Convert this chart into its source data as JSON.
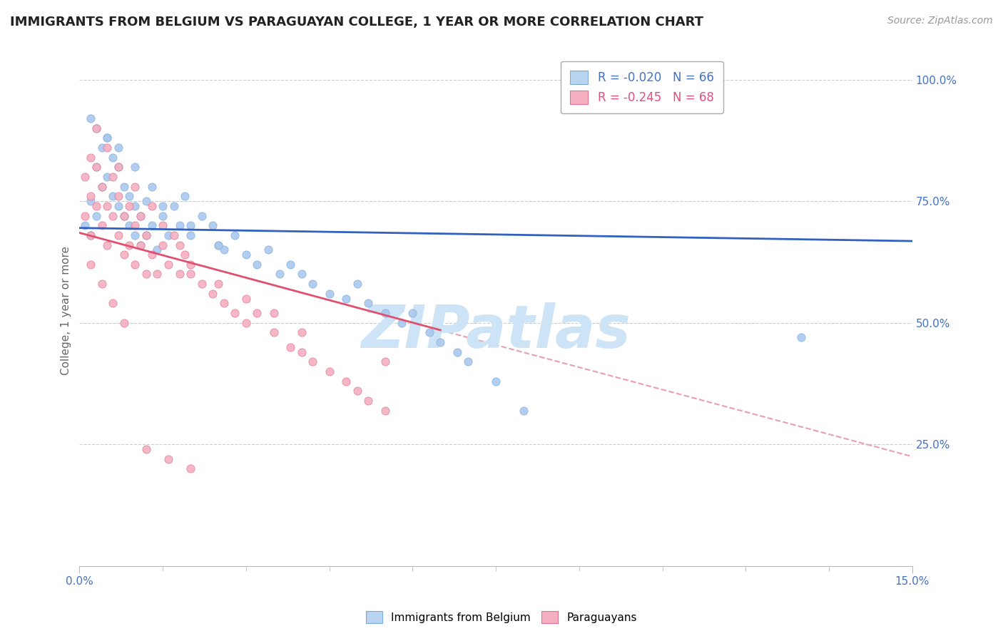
{
  "title": "IMMIGRANTS FROM BELGIUM VS PARAGUAYAN COLLEGE, 1 YEAR OR MORE CORRELATION CHART",
  "source_text": "Source: ZipAtlas.com",
  "ylabel": "College, 1 year or more",
  "xlim": [
    0.0,
    0.15
  ],
  "ylim": [
    0.0,
    1.05
  ],
  "ytick_positions": [
    0.25,
    0.5,
    0.75,
    1.0
  ],
  "ytick_labels": [
    "25.0%",
    "50.0%",
    "75.0%",
    "100.0%"
  ],
  "legend_entries": [
    {
      "label": "R = -0.020   N = 66",
      "color": "#4472c4"
    },
    {
      "label": "R = -0.245   N = 68",
      "color": "#e05080"
    }
  ],
  "blue_scatter": {
    "color": "#aac8ee",
    "edge_color": "#7aaad8",
    "x": [
      0.001,
      0.002,
      0.002,
      0.003,
      0.003,
      0.004,
      0.004,
      0.005,
      0.005,
      0.006,
      0.006,
      0.007,
      0.007,
      0.008,
      0.008,
      0.009,
      0.009,
      0.01,
      0.01,
      0.011,
      0.011,
      0.012,
      0.012,
      0.013,
      0.014,
      0.015,
      0.016,
      0.017,
      0.018,
      0.019,
      0.02,
      0.022,
      0.024,
      0.025,
      0.026,
      0.028,
      0.03,
      0.032,
      0.034,
      0.036,
      0.038,
      0.04,
      0.042,
      0.045,
      0.048,
      0.05,
      0.052,
      0.055,
      0.058,
      0.06,
      0.063,
      0.065,
      0.068,
      0.07,
      0.075,
      0.08,
      0.002,
      0.003,
      0.005,
      0.007,
      0.01,
      0.013,
      0.015,
      0.02,
      0.025,
      0.13
    ],
    "y": [
      0.7,
      0.68,
      0.75,
      0.72,
      0.82,
      0.78,
      0.86,
      0.8,
      0.88,
      0.76,
      0.84,
      0.74,
      0.82,
      0.72,
      0.78,
      0.7,
      0.76,
      0.68,
      0.74,
      0.66,
      0.72,
      0.68,
      0.75,
      0.7,
      0.65,
      0.72,
      0.68,
      0.74,
      0.7,
      0.76,
      0.68,
      0.72,
      0.7,
      0.66,
      0.65,
      0.68,
      0.64,
      0.62,
      0.65,
      0.6,
      0.62,
      0.6,
      0.58,
      0.56,
      0.55,
      0.58,
      0.54,
      0.52,
      0.5,
      0.52,
      0.48,
      0.46,
      0.44,
      0.42,
      0.38,
      0.32,
      0.92,
      0.9,
      0.88,
      0.86,
      0.82,
      0.78,
      0.74,
      0.7,
      0.66,
      0.47
    ]
  },
  "pink_scatter": {
    "color": "#f4b0c0",
    "edge_color": "#e07090",
    "x": [
      0.001,
      0.001,
      0.002,
      0.002,
      0.002,
      0.003,
      0.003,
      0.004,
      0.004,
      0.005,
      0.005,
      0.006,
      0.006,
      0.007,
      0.007,
      0.008,
      0.008,
      0.009,
      0.009,
      0.01,
      0.01,
      0.011,
      0.011,
      0.012,
      0.012,
      0.013,
      0.014,
      0.015,
      0.016,
      0.017,
      0.018,
      0.019,
      0.02,
      0.022,
      0.024,
      0.026,
      0.028,
      0.03,
      0.032,
      0.035,
      0.038,
      0.04,
      0.042,
      0.045,
      0.048,
      0.05,
      0.052,
      0.055,
      0.003,
      0.005,
      0.007,
      0.01,
      0.013,
      0.015,
      0.018,
      0.02,
      0.025,
      0.03,
      0.035,
      0.04,
      0.002,
      0.004,
      0.006,
      0.008,
      0.012,
      0.016,
      0.02,
      0.055
    ],
    "y": [
      0.72,
      0.8,
      0.68,
      0.76,
      0.84,
      0.74,
      0.82,
      0.7,
      0.78,
      0.66,
      0.74,
      0.72,
      0.8,
      0.68,
      0.76,
      0.64,
      0.72,
      0.66,
      0.74,
      0.62,
      0.7,
      0.66,
      0.72,
      0.6,
      0.68,
      0.64,
      0.6,
      0.66,
      0.62,
      0.68,
      0.6,
      0.64,
      0.6,
      0.58,
      0.56,
      0.54,
      0.52,
      0.5,
      0.52,
      0.48,
      0.45,
      0.44,
      0.42,
      0.4,
      0.38,
      0.36,
      0.34,
      0.32,
      0.9,
      0.86,
      0.82,
      0.78,
      0.74,
      0.7,
      0.66,
      0.62,
      0.58,
      0.55,
      0.52,
      0.48,
      0.62,
      0.58,
      0.54,
      0.5,
      0.24,
      0.22,
      0.2,
      0.42
    ]
  },
  "blue_trendline": {
    "x": [
      0.0,
      0.15
    ],
    "y": [
      0.695,
      0.668
    ],
    "color": "#3060c0",
    "linewidth": 2.0
  },
  "pink_trendline_solid": {
    "x": [
      0.0,
      0.065
    ],
    "y": [
      0.685,
      0.485
    ],
    "color": "#e05070",
    "linewidth": 2.0
  },
  "pink_trendline_dashed": {
    "x": [
      0.065,
      0.15
    ],
    "y": [
      0.485,
      0.225
    ],
    "color": "#e8a0b0",
    "linewidth": 1.5,
    "linestyle": "--"
  },
  "background_color": "#ffffff",
  "grid_color": "#cccccc",
  "axis_color": "#bbbbbb",
  "title_fontsize": 13,
  "label_fontsize": 11,
  "tick_fontsize": 11,
  "source_fontsize": 10,
  "watermark_text": "ZIPatlas",
  "watermark_color": "#cce4f5",
  "watermark_fontsize": 60
}
